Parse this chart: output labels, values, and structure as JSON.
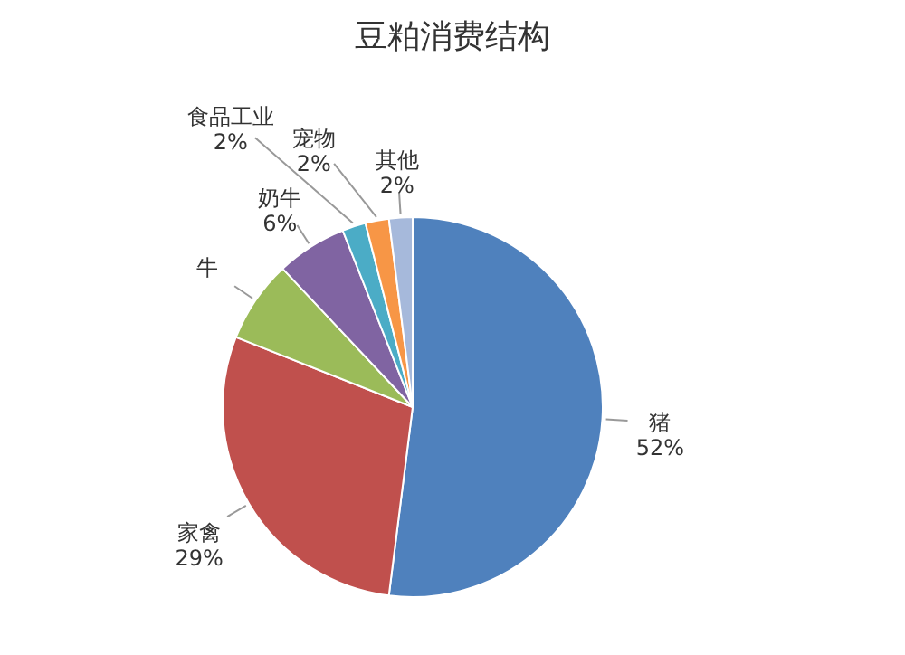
{
  "chart_data": {
    "type": "pie",
    "title": "豆粕消费结构",
    "categories": [
      "猪",
      "家禽",
      "牛",
      "奶牛",
      "食品工业",
      "宠物",
      "其他"
    ],
    "values": [
      52,
      29,
      7,
      6,
      2,
      2,
      2
    ],
    "value_labels": [
      "52%",
      "29%",
      null,
      "6%",
      "2%",
      "2%",
      "2%"
    ],
    "colors": [
      "#4f81bd",
      "#c0504d",
      "#9bbb59",
      "#8064a2",
      "#4bacc6",
      "#f79646",
      "#a6b9db"
    ],
    "legend": false
  }
}
